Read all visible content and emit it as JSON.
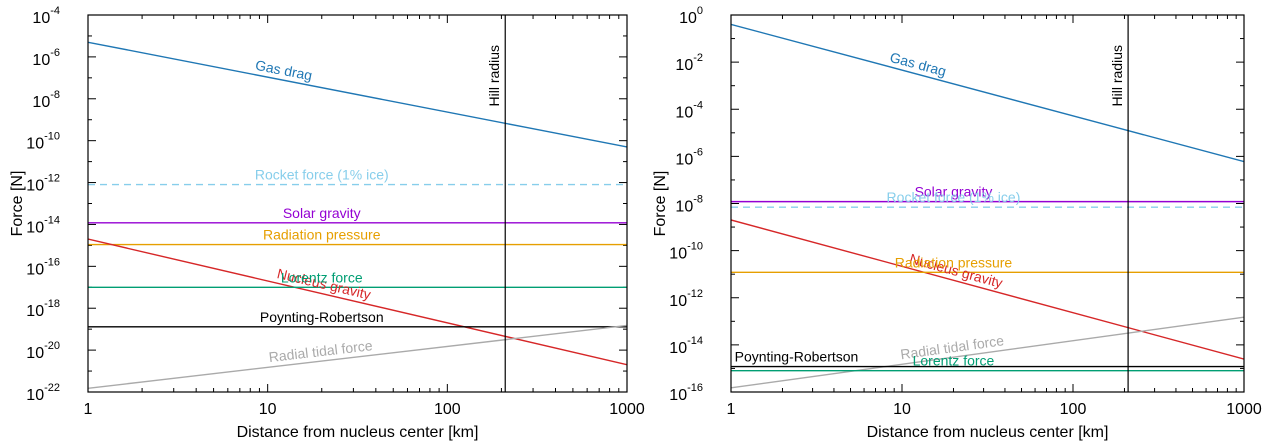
{
  "chart_data": [
    {
      "type": "line",
      "xlabel": "Distance from nucleus center [km]",
      "ylabel": "Force [N]",
      "xscale": "log",
      "yscale": "log",
      "xlim": [
        1,
        1000
      ],
      "ylim": [
        1e-22,
        0.0001
      ],
      "xticks": [
        {
          "base": "1",
          "exp": ""
        },
        {
          "base": "10",
          "exp": ""
        },
        {
          "base": "100",
          "exp": ""
        },
        {
          "base": "1000",
          "exp": ""
        }
      ],
      "yticks": [
        {
          "base": "10",
          "exp": "-4"
        },
        {
          "base": "10",
          "exp": "-6"
        },
        {
          "base": "10",
          "exp": "-8"
        },
        {
          "base": "10",
          "exp": "-10"
        },
        {
          "base": "10",
          "exp": "-12"
        },
        {
          "base": "10",
          "exp": "-14"
        },
        {
          "base": "10",
          "exp": "-16"
        },
        {
          "base": "10",
          "exp": "-18"
        },
        {
          "base": "10",
          "exp": "-20"
        },
        {
          "base": "10",
          "exp": "-22"
        }
      ],
      "vline": {
        "x": 210,
        "label": "Hill radius"
      },
      "series": [
        {
          "name": "Gas drag",
          "color": "#1f77b4",
          "dash": false,
          "x": [
            1,
            1000
          ],
          "y": [
            5e-06,
            5e-11
          ],
          "label_x": 12
        },
        {
          "name": "Rocket force (1% ice)",
          "color": "#87ceeb",
          "dash": true,
          "x": [
            1,
            1000
          ],
          "y": [
            8e-13,
            8e-13
          ],
          "label_x": 20
        },
        {
          "name": "Solar gravity",
          "color": "#9400d3",
          "dash": false,
          "x": [
            1,
            1000
          ],
          "y": [
            1.2e-14,
            1.2e-14
          ],
          "label_x": 20
        },
        {
          "name": "Radiation pressure",
          "color": "#e69f00",
          "dash": false,
          "x": [
            1,
            1000
          ],
          "y": [
            1.1e-15,
            1.1e-15
          ],
          "label_x": 20
        },
        {
          "name": "Nucleus gravity",
          "color": "#d62728",
          "dash": false,
          "x": [
            1,
            1000
          ],
          "y": [
            2e-15,
            2e-21
          ],
          "label_x": 20
        },
        {
          "name": "Lorentz force",
          "color": "#009e73",
          "dash": false,
          "x": [
            1,
            1000
          ],
          "y": [
            1e-17,
            1e-17
          ],
          "label_x": 20
        },
        {
          "name": "Poynting-Robertson",
          "color": "#000000",
          "dash": false,
          "x": [
            1,
            1000
          ],
          "y": [
            1.3e-19,
            1.3e-19
          ],
          "label_x": 20
        },
        {
          "name": "Radial tidal force",
          "color": "#aaaaaa",
          "dash": false,
          "x": [
            1,
            1000
          ],
          "y": [
            1.5e-22,
            1.5e-19
          ],
          "label_x": 20
        }
      ]
    },
    {
      "type": "line",
      "xlabel": "Distance from nucleus center [km]",
      "ylabel": "Force [N]",
      "xscale": "log",
      "yscale": "log",
      "xlim": [
        1,
        1000
      ],
      "ylim": [
        1e-16,
        1
      ],
      "xticks": [
        {
          "base": "1",
          "exp": ""
        },
        {
          "base": "10",
          "exp": ""
        },
        {
          "base": "100",
          "exp": ""
        },
        {
          "base": "1000",
          "exp": ""
        }
      ],
      "yticks": [
        {
          "base": "10",
          "exp": "0"
        },
        {
          "base": "10",
          "exp": "-2"
        },
        {
          "base": "10",
          "exp": "-4"
        },
        {
          "base": "10",
          "exp": "-6"
        },
        {
          "base": "10",
          "exp": "-8"
        },
        {
          "base": "10",
          "exp": "-10"
        },
        {
          "base": "10",
          "exp": "-12"
        },
        {
          "base": "10",
          "exp": "-14"
        },
        {
          "base": "10",
          "exp": "-16"
        }
      ],
      "vline": {
        "x": 210,
        "label": "Hill radius"
      },
      "series": [
        {
          "name": "Gas drag",
          "color": "#1f77b4",
          "dash": false,
          "x": [
            1,
            1000
          ],
          "y": [
            0.4,
            6e-07
          ],
          "label_x": 12
        },
        {
          "name": "Solar gravity",
          "color": "#9400d3",
          "dash": false,
          "x": [
            1,
            1000
          ],
          "y": [
            1.2e-08,
            1.2e-08
          ],
          "label_x": 20
        },
        {
          "name": "Rocket force (1% ice)",
          "color": "#87ceeb",
          "dash": true,
          "x": [
            1,
            1000
          ],
          "y": [
            7e-09,
            7e-09
          ],
          "label_x": 20
        },
        {
          "name": "Nucleus gravity",
          "color": "#d62728",
          "dash": false,
          "x": [
            1,
            1000
          ],
          "y": [
            2e-09,
            2.5e-15
          ],
          "label_x": 20
        },
        {
          "name": "Radiation pressure",
          "color": "#e69f00",
          "dash": false,
          "x": [
            1,
            1000
          ],
          "y": [
            1.2e-11,
            1.2e-11
          ],
          "label_x": 20
        },
        {
          "name": "Radial tidal force",
          "color": "#aaaaaa",
          "dash": false,
          "x": [
            1,
            1000
          ],
          "y": [
            1.5e-16,
            1.5e-13
          ],
          "label_x": 20
        },
        {
          "name": "Poynting-Robertson",
          "color": "#000000",
          "dash": false,
          "x": [
            1,
            1000
          ],
          "y": [
            1.2e-15,
            1.2e-15
          ],
          "label_x": 1.05
        },
        {
          "name": "Lorentz force",
          "color": "#009e73",
          "dash": false,
          "x": [
            1,
            1000
          ],
          "y": [
            8e-16,
            8e-16
          ],
          "label_x": 20
        }
      ]
    }
  ]
}
